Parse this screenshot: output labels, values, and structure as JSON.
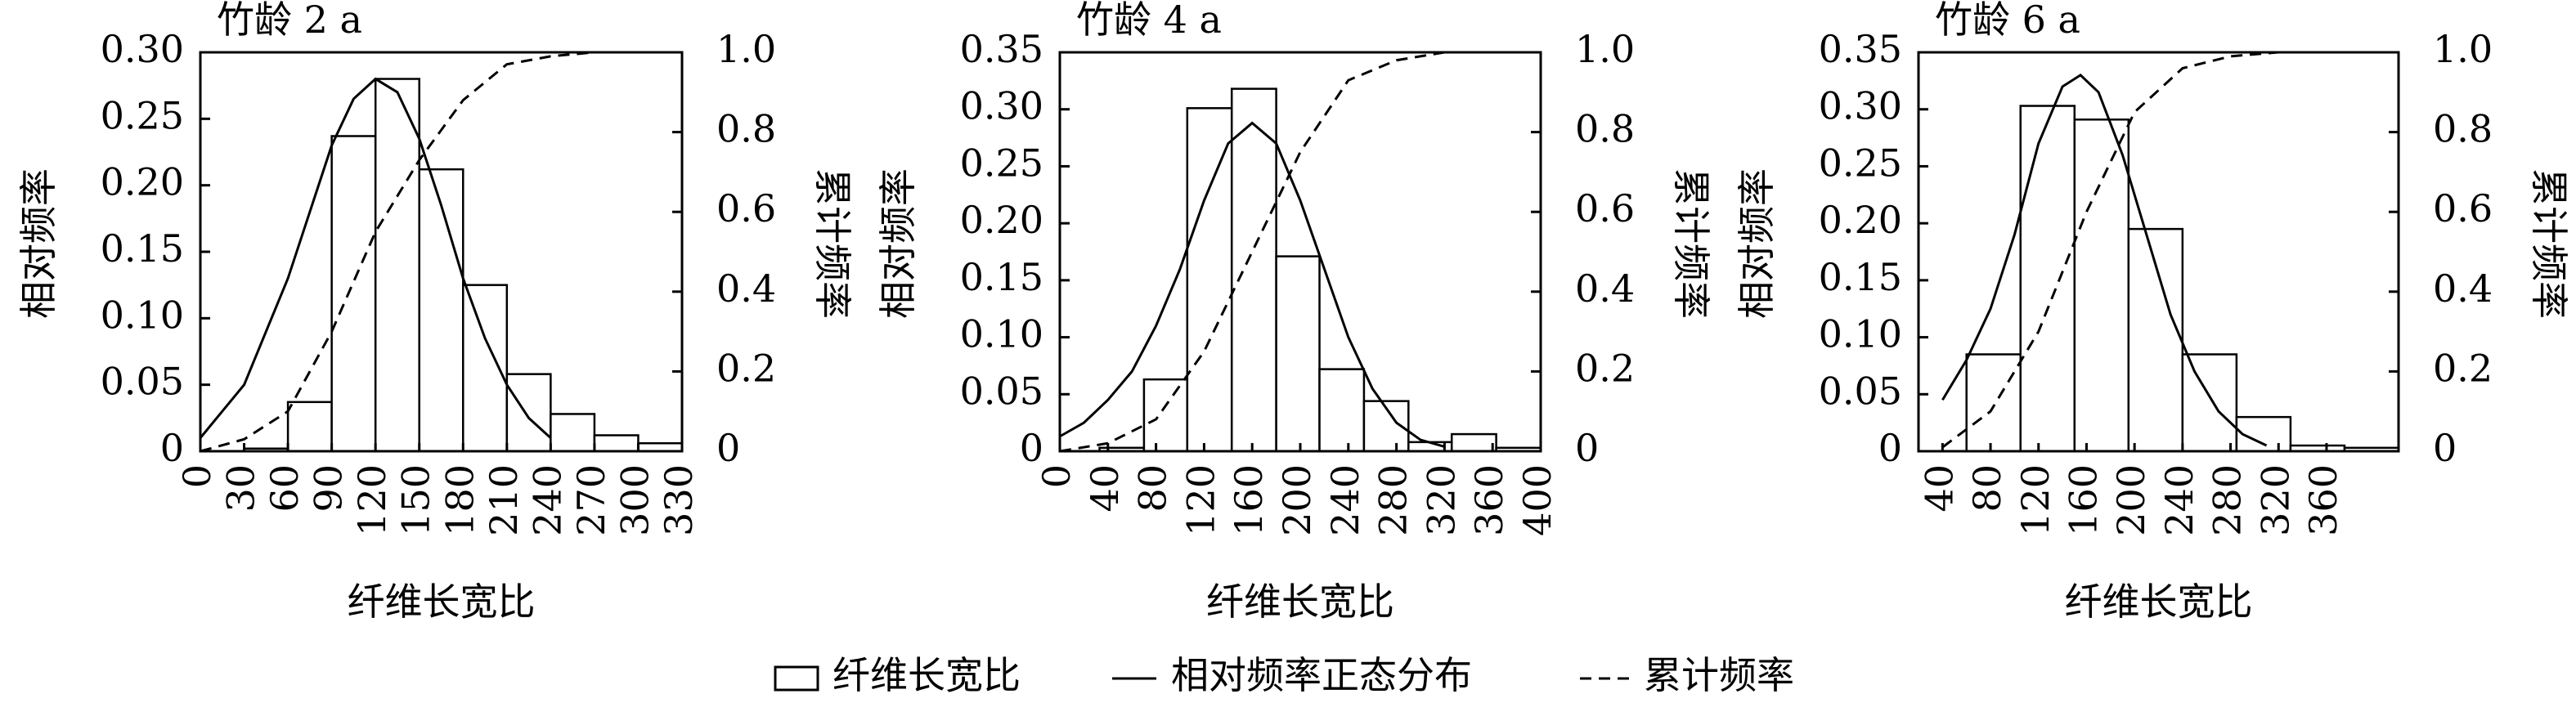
{
  "chart_data": [
    {
      "type": "histogram",
      "title": "竹龄 2 a",
      "xlabel": "纤维长宽比",
      "ylabel": "相对频率",
      "y2label": "累计频率",
      "bins": [
        30,
        60,
        90,
        120,
        150,
        180,
        210,
        240,
        270,
        300,
        330
      ],
      "values": [
        0.002,
        0.037,
        0.237,
        0.28,
        0.212,
        0.125,
        0.058,
        0.028,
        0.012,
        0.006
      ],
      "color": "#ffffff",
      "series": [
        {
          "x": [
            0,
            15,
            30,
            45,
            60,
            75,
            90,
            105,
            120,
            135,
            150,
            165,
            180,
            195,
            210,
            225,
            240
          ],
          "values": [
            0.01,
            0.03,
            0.05,
            0.09,
            0.13,
            0.18,
            0.23,
            0.265,
            0.28,
            0.27,
            0.235,
            0.185,
            0.13,
            0.085,
            0.05,
            0.025,
            0.01
          ],
          "color": "#000000",
          "style": "solid"
        },
        {
          "x": [
            0,
            30,
            60,
            90,
            120,
            150,
            180,
            210,
            240,
            270,
            330
          ],
          "values": [
            0.0,
            0.03,
            0.1,
            0.3,
            0.55,
            0.73,
            0.88,
            0.97,
            0.99,
            1.0,
            1.0
          ],
          "color": "#000000",
          "style": "dashed",
          "axis": "y2"
        }
      ],
      "xlim": [
        0,
        330
      ],
      "xticks": [
        0,
        30,
        60,
        90,
        120,
        150,
        180,
        210,
        240,
        270,
        300,
        330
      ],
      "ylim": [
        0,
        0.3
      ],
      "yticks": [
        0,
        0.05,
        {
          "value": 0.1,
          "label": "0.10"
        },
        0.15,
        {
          "value": 0.2,
          "label": "0.20"
        },
        0.25,
        {
          "value": 0.3,
          "label": "0.30"
        }
      ],
      "y2lim": [
        0,
        1
      ],
      "y2ticks": [
        0,
        0.2,
        0.4,
        0.6,
        0.8,
        {
          "value": 1,
          "label": "1.0"
        }
      ]
    },
    {
      "type": "histogram",
      "title": "竹龄 4 a",
      "xlabel": "纤维长宽比",
      "ylabel": "相对频率",
      "y2label": "累计频率",
      "bins": [
        33,
        70,
        106,
        143,
        180,
        216,
        253,
        290,
        326,
        363,
        400
      ],
      "values": [
        0.003,
        0.063,
        0.301,
        0.318,
        0.171,
        0.072,
        0.044,
        0.008,
        0.015,
        0.003
      ],
      "color": "#ffffff",
      "series": [
        {
          "x": [
            0,
            20,
            40,
            60,
            80,
            100,
            120,
            140,
            160,
            180,
            200,
            220,
            240,
            260,
            280,
            300,
            320
          ],
          "values": [
            0.013,
            0.025,
            0.045,
            0.07,
            0.11,
            0.16,
            0.22,
            0.27,
            0.288,
            0.27,
            0.22,
            0.16,
            0.1,
            0.055,
            0.025,
            0.01,
            0.004
          ],
          "color": "#000000",
          "style": "solid"
        },
        {
          "x": [
            0,
            40,
            80,
            120,
            160,
            200,
            240,
            280,
            320,
            400
          ],
          "values": [
            0.0,
            0.02,
            0.08,
            0.25,
            0.5,
            0.75,
            0.93,
            0.98,
            1.0,
            1.0
          ],
          "color": "#000000",
          "style": "dashed",
          "axis": "y2"
        }
      ],
      "xlim": [
        0,
        400
      ],
      "xticks": [
        0,
        40,
        80,
        120,
        160,
        200,
        240,
        280,
        320,
        360,
        400
      ],
      "ylim": [
        0,
        0.35
      ],
      "yticks": [
        0,
        0.05,
        {
          "value": 0.1,
          "label": "0.10"
        },
        0.15,
        {
          "value": 0.2,
          "label": "0.20"
        },
        0.25,
        {
          "value": 0.3,
          "label": "0.30"
        },
        0.35
      ],
      "y2lim": [
        0,
        1
      ],
      "y2ticks": [
        0,
        0.2,
        0.4,
        0.6,
        0.8,
        {
          "value": 1,
          "label": "1.0"
        }
      ]
    },
    {
      "type": "histogram",
      "title": "竹龄 6 a",
      "xlabel": "纤维长宽比",
      "ylabel": "相对频率",
      "y2label": "累计频率",
      "bins": [
        60,
        105,
        150,
        195,
        240,
        285,
        330,
        375,
        420
      ],
      "values": [
        0.085,
        0.303,
        0.291,
        0.195,
        0.085,
        0.03,
        0.005,
        0.003
      ],
      "color": "#ffffff",
      "series": [
        {
          "x": [
            40,
            60,
            80,
            100,
            120,
            140,
            155,
            170,
            190,
            210,
            230,
            250,
            270,
            290,
            310
          ],
          "values": [
            0.045,
            0.08,
            0.125,
            0.19,
            0.27,
            0.32,
            0.33,
            0.315,
            0.26,
            0.19,
            0.12,
            0.07,
            0.035,
            0.015,
            0.005
          ],
          "color": "#000000",
          "style": "solid"
        },
        {
          "x": [
            40,
            80,
            120,
            160,
            200,
            240,
            280,
            320,
            400
          ],
          "values": [
            0.01,
            0.1,
            0.3,
            0.6,
            0.85,
            0.96,
            0.99,
            1.0,
            1.0
          ],
          "color": "#000000",
          "style": "dashed",
          "axis": "y2"
        }
      ],
      "xlim": [
        20,
        420
      ],
      "xticks": [
        40,
        80,
        120,
        160,
        200,
        240,
        280,
        320,
        360
      ],
      "ylim": [
        0,
        0.35
      ],
      "yticks": [
        0,
        0.05,
        {
          "value": 0.1,
          "label": "0.10"
        },
        0.15,
        {
          "value": 0.2,
          "label": "0.20"
        },
        0.25,
        {
          "value": 0.3,
          "label": "0.30"
        },
        0.35
      ],
      "y2lim": [
        0,
        1
      ],
      "y2ticks": [
        0,
        0.2,
        0.4,
        0.6,
        0.8,
        {
          "value": 1,
          "label": "1.0"
        }
      ]
    }
  ],
  "legend": {
    "items": [
      "纤维长宽比",
      "相对频率正态分布",
      "累计频率"
    ]
  }
}
